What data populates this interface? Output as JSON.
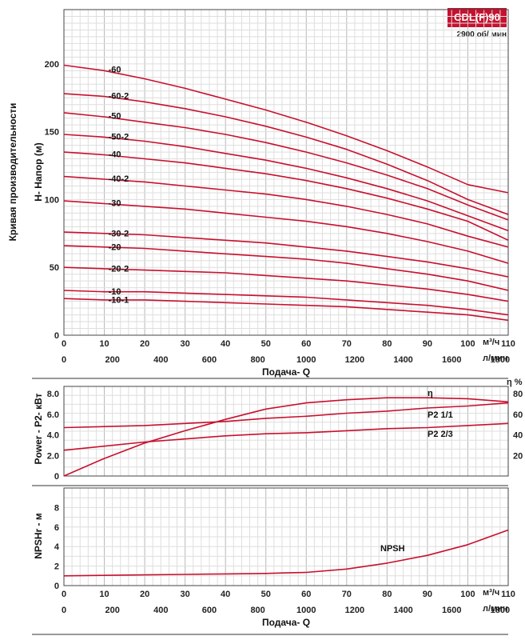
{
  "badge": "CDL(F)90",
  "speed": "2900 об/ мин",
  "side_title": "Кривая производительности",
  "chart_data": [
    {
      "type": "line",
      "title": "",
      "ylabel": "H- Напор (м)",
      "xlabel": "Подача- Q",
      "x_unit": "м³/ч",
      "x2_unit": "л/мин",
      "xlim": [
        0,
        110
      ],
      "ylim": [
        0,
        240
      ],
      "x_ticks": [
        0,
        10,
        20,
        30,
        40,
        50,
        60,
        70,
        80,
        90,
        100,
        110
      ],
      "x2_ticks": [
        0,
        200,
        400,
        600,
        800,
        1000,
        1200,
        1400,
        1600,
        1800
      ],
      "y_ticks": [
        0,
        50,
        100,
        150,
        200
      ],
      "grid": true,
      "series": [
        {
          "name": "-60",
          "x": [
            0,
            10,
            20,
            30,
            40,
            50,
            60,
            70,
            80,
            90,
            100,
            110
          ],
          "y": [
            199,
            195,
            189,
            182,
            174,
            166,
            157,
            147,
            136,
            124,
            111,
            105
          ]
        },
        {
          "name": "-60-2",
          "x": [
            0,
            10,
            20,
            30,
            40,
            50,
            60,
            70,
            80,
            90,
            100,
            110
          ],
          "y": [
            178,
            176,
            172,
            167,
            161,
            154,
            146,
            137,
            126,
            114,
            100,
            89
          ]
        },
        {
          "name": "-50",
          "x": [
            0,
            10,
            20,
            30,
            40,
            50,
            60,
            70,
            80,
            90,
            100,
            110
          ],
          "y": [
            164,
            161,
            157,
            153,
            148,
            142,
            135,
            127,
            118,
            108,
            96,
            85
          ]
        },
        {
          "name": "-50-2",
          "x": [
            0,
            10,
            20,
            30,
            40,
            50,
            60,
            70,
            80,
            90,
            100,
            110
          ],
          "y": [
            148,
            146,
            143,
            139,
            134,
            129,
            123,
            116,
            108,
            99,
            88,
            77
          ]
        },
        {
          "name": "-40",
          "x": [
            0,
            10,
            20,
            30,
            40,
            50,
            60,
            70,
            80,
            90,
            100,
            110
          ],
          "y": [
            135,
            133,
            130,
            127,
            123,
            119,
            114,
            108,
            101,
            93,
            84,
            70
          ]
        },
        {
          "name": "-40-2",
          "x": [
            0,
            10,
            20,
            30,
            40,
            50,
            60,
            70,
            80,
            90,
            100,
            110
          ],
          "y": [
            117,
            115,
            113,
            110,
            107,
            104,
            100,
            95,
            89,
            82,
            73,
            65
          ]
        },
        {
          "name": "-30",
          "x": [
            0,
            10,
            20,
            30,
            40,
            50,
            60,
            70,
            80,
            90,
            100,
            110
          ],
          "y": [
            99,
            97,
            95,
            93,
            90,
            87,
            84,
            80,
            75,
            69,
            62,
            53
          ]
        },
        {
          "name": "-30-2",
          "x": [
            0,
            10,
            20,
            30,
            40,
            50,
            60,
            70,
            80,
            90,
            100,
            110
          ],
          "y": [
            76,
            75,
            74,
            72,
            70,
            68,
            65,
            62,
            58,
            54,
            49,
            43
          ]
        },
        {
          "name": "-20",
          "x": [
            0,
            10,
            20,
            30,
            40,
            50,
            60,
            70,
            80,
            90,
            100,
            110
          ],
          "y": [
            66,
            65,
            64,
            62,
            60,
            58,
            56,
            53,
            49,
            45,
            40,
            33
          ]
        },
        {
          "name": "-20-2",
          "x": [
            0,
            10,
            20,
            30,
            40,
            50,
            60,
            70,
            80,
            90,
            100,
            110
          ],
          "y": [
            50,
            49,
            48,
            47,
            46,
            44,
            42,
            40,
            37,
            34,
            30,
            25
          ]
        },
        {
          "name": "-10",
          "x": [
            0,
            10,
            20,
            30,
            40,
            50,
            60,
            70,
            80,
            90,
            100,
            110
          ],
          "y": [
            33,
            32,
            32,
            31,
            30,
            29,
            28,
            26,
            24,
            22,
            19,
            15
          ]
        },
        {
          "name": "-10-1",
          "x": [
            0,
            10,
            20,
            30,
            40,
            50,
            60,
            70,
            80,
            90,
            100,
            110
          ],
          "y": [
            27,
            26,
            26,
            25,
            24,
            23,
            22,
            21,
            19,
            17,
            15,
            11
          ]
        }
      ]
    },
    {
      "type": "line",
      "ylabel": "Power - P2- кВт",
      "y2label": "η %",
      "xlim": [
        0,
        110
      ],
      "ylim": [
        0,
        8.7
      ],
      "y_ticks": [
        "0",
        "2.0",
        "4.0",
        "6.0",
        "8.0"
      ],
      "y_tick_values": [
        0,
        2,
        4,
        6,
        8
      ],
      "y2_ticks": [
        "20",
        "40",
        "60",
        "80"
      ],
      "y2_tick_values": [
        20,
        40,
        60,
        80
      ],
      "y2lim": [
        0,
        87
      ],
      "grid": true,
      "series": [
        {
          "name": "η",
          "axis": "right",
          "x": [
            0,
            10,
            20,
            30,
            40,
            50,
            60,
            70,
            80,
            90,
            100,
            110
          ],
          "y": [
            0,
            17,
            32,
            44,
            55,
            65,
            71,
            74,
            76,
            76,
            75,
            72
          ]
        },
        {
          "name": "P2 1/1",
          "axis": "left",
          "x": [
            0,
            10,
            20,
            30,
            40,
            50,
            60,
            70,
            80,
            90,
            100,
            110
          ],
          "y": [
            4.7,
            4.8,
            4.9,
            5.1,
            5.3,
            5.6,
            5.8,
            6.1,
            6.3,
            6.6,
            6.8,
            7.1
          ]
        },
        {
          "name": "P2 2/3",
          "axis": "left",
          "x": [
            0,
            10,
            20,
            30,
            40,
            50,
            60,
            70,
            80,
            90,
            100,
            110
          ],
          "y": [
            2.5,
            2.9,
            3.3,
            3.6,
            3.9,
            4.1,
            4.2,
            4.4,
            4.6,
            4.7,
            4.9,
            5.1
          ]
        }
      ]
    },
    {
      "type": "line",
      "ylabel": "NPSHr - м",
      "xlabel": "Подача- Q",
      "x_unit": "м³/ч",
      "x2_unit": "л/мин",
      "xlim": [
        0,
        110
      ],
      "ylim": [
        0,
        10
      ],
      "y_ticks": [
        0,
        2,
        4,
        6,
        8
      ],
      "x_ticks": [
        0,
        10,
        20,
        30,
        40,
        50,
        60,
        70,
        80,
        90,
        100,
        110
      ],
      "x2_ticks": [
        0,
        200,
        400,
        600,
        800,
        1000,
        1200,
        1400,
        1600,
        1800
      ],
      "grid": true,
      "series": [
        {
          "name": "NPSH",
          "x": [
            0,
            10,
            20,
            30,
            40,
            50,
            55,
            60,
            70,
            80,
            90,
            100,
            110
          ],
          "y": [
            1.0,
            1.05,
            1.1,
            1.15,
            1.2,
            1.25,
            1.3,
            1.35,
            1.7,
            2.3,
            3.1,
            4.2,
            5.7
          ]
        }
      ]
    }
  ]
}
